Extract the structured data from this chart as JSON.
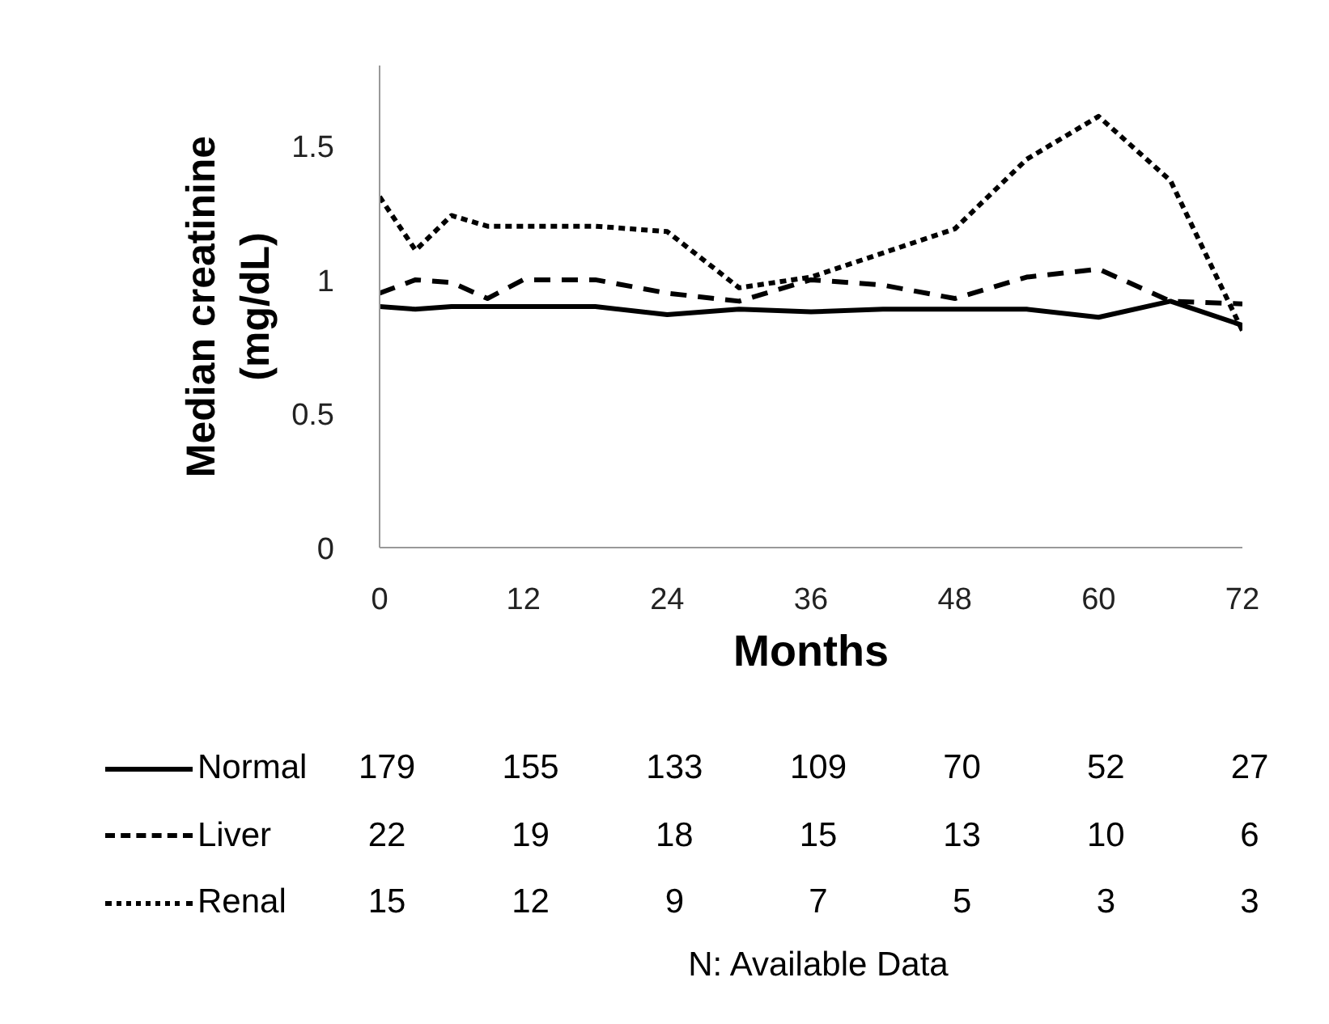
{
  "chart_data": {
    "type": "line",
    "xlabel": "Months",
    "ylabel": "Median creatinine\n(mg/dL)",
    "xlim": [
      0,
      72
    ],
    "xticks": [
      0,
      12,
      24,
      36,
      48,
      60,
      72
    ],
    "ylim": [
      0,
      1.8
    ],
    "yticks": [
      0,
      0.5,
      1,
      1.5
    ],
    "grid": false,
    "legend": "bottom",
    "marker": "none",
    "series": [
      {
        "name": "Normal",
        "color": "#000000",
        "line_style": "solid",
        "x": [
          0,
          3,
          6,
          18,
          24,
          30,
          36,
          42,
          54,
          60,
          66,
          72
        ],
        "values": [
          0.9,
          0.89,
          0.9,
          0.9,
          0.87,
          0.89,
          0.88,
          0.89,
          0.89,
          0.86,
          0.92,
          0.83
        ]
      },
      {
        "name": "Liver",
        "color": "#000000",
        "line_style": "dashed",
        "x": [
          0,
          3,
          6,
          9,
          12,
          18,
          24,
          30,
          36,
          42,
          48,
          54,
          60,
          66,
          72
        ],
        "values": [
          0.95,
          1.0,
          0.99,
          0.93,
          1.0,
          1.0,
          0.95,
          0.92,
          1.0,
          0.98,
          0.93,
          1.01,
          1.04,
          0.92,
          0.91
        ]
      },
      {
        "name": "Renal",
        "color": "#000000",
        "line_style": "dotted",
        "x": [
          0,
          3,
          6,
          9,
          18,
          24,
          30,
          36,
          48,
          54,
          60,
          66,
          72
        ],
        "values": [
          1.31,
          1.11,
          1.24,
          1.2,
          1.2,
          1.18,
          0.97,
          1.01,
          1.19,
          1.45,
          1.61,
          1.37,
          0.81
        ]
      }
    ],
    "annotations": [
      "179",
      "155",
      "133",
      "109",
      "70",
      "52",
      "27",
      "22",
      "19",
      "18",
      "15",
      "13",
      "10",
      "6",
      "15",
      "12",
      "9",
      "7",
      "5",
      "3",
      "3",
      "N: Available Data"
    ]
  }
}
